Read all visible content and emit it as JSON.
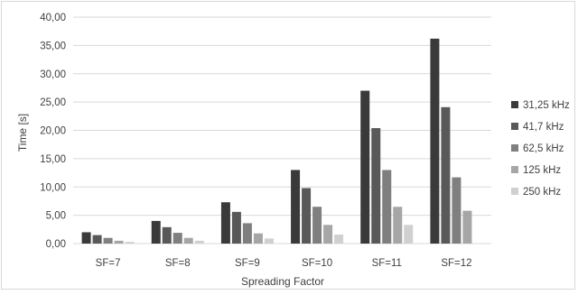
{
  "chart_data": {
    "type": "bar",
    "title": "",
    "xlabel": "Spreading Factor",
    "ylabel": "Time [s]",
    "ylim": [
      0,
      40
    ],
    "y_ticks": [
      "0,00",
      "5,00",
      "10,00",
      "15,00",
      "20,00",
      "25,00",
      "30,00",
      "35,00",
      "40,00"
    ],
    "grid": true,
    "legend_position": "right",
    "categories": [
      "SF=7",
      "SF=8",
      "SF=9",
      "SF=10",
      "SF=11",
      "SF=12"
    ],
    "series": [
      {
        "name": "31,25 kHz",
        "color": "#3a3a3a",
        "values": [
          2.0,
          4.0,
          7.3,
          13.0,
          27.0,
          36.2
        ]
      },
      {
        "name": "41,7 kHz",
        "color": "#595959",
        "values": [
          1.5,
          2.9,
          5.6,
          9.8,
          20.4,
          24.1
        ]
      },
      {
        "name": "62,5 kHz",
        "color": "#7f7f7f",
        "values": [
          1.0,
          1.9,
          3.6,
          6.5,
          13.0,
          11.7
        ]
      },
      {
        "name": "125 kHz",
        "color": "#a6a6a6",
        "values": [
          0.5,
          1.0,
          1.8,
          3.3,
          6.5,
          5.8
        ]
      },
      {
        "name": "250 kHz",
        "color": "#d0d0d0",
        "values": [
          0.3,
          0.5,
          0.9,
          1.6,
          3.3,
          0
        ]
      }
    ]
  }
}
